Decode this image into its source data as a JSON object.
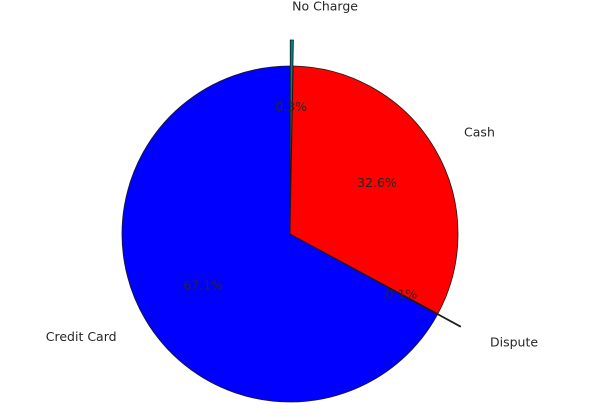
{
  "chart_data": {
    "type": "pie",
    "title": "",
    "slices": [
      {
        "label": "No Charge",
        "value": 0.3,
        "pct_label": "0.3%",
        "color": "#008080",
        "exploded": true
      },
      {
        "label": "Cash",
        "value": 32.6,
        "pct_label": "32.6%",
        "color": "#ff0000",
        "exploded": false
      },
      {
        "label": "Dispute",
        "value": 0.1,
        "pct_label": "0.1%",
        "color": "#006400",
        "exploded": true
      },
      {
        "label": "Credit Card",
        "value": 67.1,
        "pct_label": "67.1%",
        "color": "#0000ff",
        "exploded": false
      }
    ],
    "start_angle_deg": 90,
    "direction": "clockwise",
    "legend": "none"
  }
}
